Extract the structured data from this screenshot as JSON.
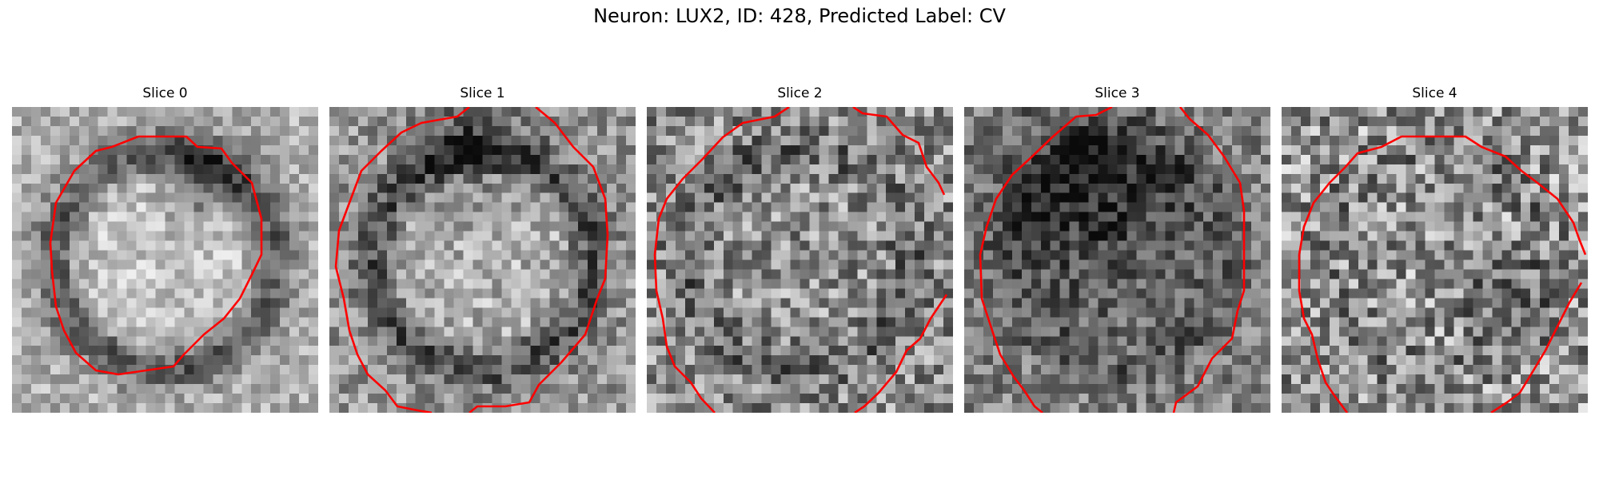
{
  "figure": {
    "title": "Neuron: LUX2, ID: 428, Predicted Label: CV"
  },
  "panels": [
    {
      "label": "Slice 0",
      "image": "grayscale-neuron-crop",
      "contour_color": "#ff0000"
    },
    {
      "label": "Slice 1",
      "image": "grayscale-neuron-crop",
      "contour_color": "#ff0000"
    },
    {
      "label": "Slice 2",
      "image": "grayscale-neuron-crop",
      "contour_color": "#ff0000"
    },
    {
      "label": "Slice 3",
      "image": "grayscale-neuron-crop",
      "contour_color": "#ff0000"
    },
    {
      "label": "Slice 4",
      "image": "grayscale-neuron-crop",
      "contour_color": "#ff0000"
    }
  ]
}
